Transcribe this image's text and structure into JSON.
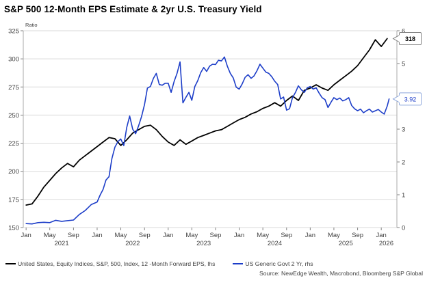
{
  "title": "S&P 500 12-Month EPS Estimate & 2yr U.S. Treasury Yield",
  "source": "Source: NewEdge Wealth, Macrobond, Bloomberg S&P Global",
  "colors": {
    "eps": "#000000",
    "yield": "#1c3dc8",
    "grid": "#d9d9d9",
    "axis": "#a9a9a9",
    "tick": "#808080",
    "text": "#404040",
    "callout_border_gray": "#7f7f7f",
    "callout_border_blue": "#8fa8dc"
  },
  "chart_data": {
    "type": "line",
    "title": "S&P 500 12-Month EPS Estimate & 2yr U.S. Treasury Yield",
    "legend_position": "bottom",
    "grid": true,
    "y_left": {
      "label": "Ratio",
      "min": 150,
      "max": 325,
      "ticks": [
        150,
        175,
        200,
        225,
        250,
        275,
        300,
        325
      ]
    },
    "y_right": {
      "label": "",
      "min": 0,
      "max": 6,
      "ticks": [
        0,
        1,
        2,
        3,
        4,
        5,
        6
      ]
    },
    "x": {
      "domain": [
        2020.96,
        2026.22
      ],
      "month_ticks": [
        {
          "t": 2021.0,
          "label": "Jan"
        },
        {
          "t": 2021.333,
          "label": "May"
        },
        {
          "t": 2021.667,
          "label": "Sep"
        },
        {
          "t": 2022.0,
          "label": "Jan"
        },
        {
          "t": 2022.333,
          "label": "May"
        },
        {
          "t": 2022.667,
          "label": "Sep"
        },
        {
          "t": 2023.0,
          "label": "Jan"
        },
        {
          "t": 2023.333,
          "label": "May"
        },
        {
          "t": 2023.667,
          "label": "Sep"
        },
        {
          "t": 2024.0,
          "label": "Jan"
        },
        {
          "t": 2024.333,
          "label": "May"
        },
        {
          "t": 2024.667,
          "label": "Sep"
        },
        {
          "t": 2025.0,
          "label": "Jan"
        },
        {
          "t": 2025.333,
          "label": "May"
        },
        {
          "t": 2025.667,
          "label": "Sep"
        },
        {
          "t": 2026.0,
          "label": "Jan"
        }
      ],
      "year_ticks": [
        {
          "t": 2021.5,
          "label": "2021"
        },
        {
          "t": 2022.5,
          "label": "2022"
        },
        {
          "t": 2023.5,
          "label": "2023"
        },
        {
          "t": 2024.5,
          "label": "2024"
        },
        {
          "t": 2025.5,
          "label": "2025"
        },
        {
          "t": 2026.07,
          "label": "2026"
        }
      ]
    },
    "series": [
      {
        "name": "United States, Equity Indices, S&P, 500, Index, 12 -Month Forward EPS, lhs",
        "axis": "left",
        "color": "#000000",
        "width": 1.8,
        "end_label": "318",
        "start": 2021.0,
        "step_months": 1,
        "values": [
          170,
          171,
          178,
          186,
          192,
          198,
          203,
          207,
          204,
          210,
          214,
          218,
          222,
          226,
          230,
          229,
          223,
          228,
          234,
          237,
          240,
          241,
          237,
          231,
          226,
          223,
          228,
          224,
          227,
          230,
          232,
          234,
          236,
          237,
          240,
          243,
          246,
          248,
          251,
          253,
          256,
          258,
          261,
          258,
          263,
          267,
          263,
          272,
          274,
          277,
          274,
          272,
          277,
          281,
          285,
          289,
          294,
          301,
          308,
          317,
          311,
          318
        ]
      },
      {
        "name": "US Generic Govt 2 Yr, rhs",
        "axis": "right",
        "color": "#1c3dc8",
        "width": 1.6,
        "end_label": "3.92",
        "points": [
          [
            2021.0,
            0.12
          ],
          [
            2021.083,
            0.11
          ],
          [
            2021.167,
            0.15
          ],
          [
            2021.25,
            0.16
          ],
          [
            2021.333,
            0.15
          ],
          [
            2021.417,
            0.22
          ],
          [
            2021.5,
            0.19
          ],
          [
            2021.583,
            0.21
          ],
          [
            2021.667,
            0.23
          ],
          [
            2021.75,
            0.4
          ],
          [
            2021.833,
            0.52
          ],
          [
            2021.917,
            0.7
          ],
          [
            2022.0,
            0.78
          ],
          [
            2022.042,
            0.99
          ],
          [
            2022.083,
            1.16
          ],
          [
            2022.125,
            1.45
          ],
          [
            2022.167,
            1.55
          ],
          [
            2022.208,
            2.1
          ],
          [
            2022.25,
            2.45
          ],
          [
            2022.292,
            2.62
          ],
          [
            2022.333,
            2.7
          ],
          [
            2022.375,
            2.5
          ],
          [
            2022.417,
            3.05
          ],
          [
            2022.458,
            3.4
          ],
          [
            2022.5,
            3.0
          ],
          [
            2022.542,
            2.86
          ],
          [
            2022.583,
            3.1
          ],
          [
            2022.625,
            3.38
          ],
          [
            2022.667,
            3.75
          ],
          [
            2022.708,
            4.25
          ],
          [
            2022.75,
            4.3
          ],
          [
            2022.792,
            4.55
          ],
          [
            2022.833,
            4.7
          ],
          [
            2022.875,
            4.36
          ],
          [
            2022.917,
            4.34
          ],
          [
            2022.958,
            4.4
          ],
          [
            2023.0,
            4.4
          ],
          [
            2023.042,
            4.12
          ],
          [
            2023.083,
            4.45
          ],
          [
            2023.125,
            4.7
          ],
          [
            2023.167,
            5.05
          ],
          [
            2023.208,
            3.8
          ],
          [
            2023.25,
            3.97
          ],
          [
            2023.292,
            4.12
          ],
          [
            2023.333,
            3.88
          ],
          [
            2023.375,
            4.3
          ],
          [
            2023.417,
            4.48
          ],
          [
            2023.458,
            4.72
          ],
          [
            2023.5,
            4.88
          ],
          [
            2023.542,
            4.76
          ],
          [
            2023.583,
            4.92
          ],
          [
            2023.625,
            4.98
          ],
          [
            2023.667,
            4.97
          ],
          [
            2023.708,
            5.1
          ],
          [
            2023.75,
            5.08
          ],
          [
            2023.792,
            5.2
          ],
          [
            2023.833,
            4.92
          ],
          [
            2023.875,
            4.7
          ],
          [
            2023.917,
            4.56
          ],
          [
            2023.958,
            4.28
          ],
          [
            2024.0,
            4.22
          ],
          [
            2024.042,
            4.38
          ],
          [
            2024.083,
            4.58
          ],
          [
            2024.125,
            4.66
          ],
          [
            2024.167,
            4.55
          ],
          [
            2024.208,
            4.62
          ],
          [
            2024.25,
            4.78
          ],
          [
            2024.292,
            4.98
          ],
          [
            2024.333,
            4.86
          ],
          [
            2024.375,
            4.74
          ],
          [
            2024.417,
            4.7
          ],
          [
            2024.458,
            4.6
          ],
          [
            2024.5,
            4.46
          ],
          [
            2024.542,
            4.36
          ],
          [
            2024.583,
            3.92
          ],
          [
            2024.625,
            3.98
          ],
          [
            2024.667,
            3.58
          ],
          [
            2024.708,
            3.62
          ],
          [
            2024.75,
            3.96
          ],
          [
            2024.792,
            4.12
          ],
          [
            2024.833,
            4.32
          ],
          [
            2024.875,
            4.2
          ],
          [
            2024.917,
            4.12
          ],
          [
            2024.958,
            4.26
          ],
          [
            2025.0,
            4.3
          ],
          [
            2025.042,
            4.22
          ],
          [
            2025.083,
            4.26
          ],
          [
            2025.125,
            4.1
          ],
          [
            2025.167,
            3.96
          ],
          [
            2025.208,
            3.9
          ],
          [
            2025.25,
            3.66
          ],
          [
            2025.292,
            3.82
          ],
          [
            2025.333,
            3.96
          ],
          [
            2025.375,
            3.9
          ],
          [
            2025.417,
            3.95
          ],
          [
            2025.458,
            3.86
          ],
          [
            2025.5,
            3.9
          ],
          [
            2025.542,
            3.96
          ],
          [
            2025.583,
            3.72
          ],
          [
            2025.625,
            3.62
          ],
          [
            2025.667,
            3.56
          ],
          [
            2025.708,
            3.61
          ],
          [
            2025.75,
            3.5
          ],
          [
            2025.792,
            3.56
          ],
          [
            2025.833,
            3.61
          ],
          [
            2025.875,
            3.52
          ],
          [
            2025.917,
            3.56
          ],
          [
            2025.958,
            3.6
          ],
          [
            2026.0,
            3.52
          ],
          [
            2026.042,
            3.46
          ],
          [
            2026.083,
            3.7
          ],
          [
            2026.11,
            3.92
          ]
        ]
      }
    ],
    "source": "Source: NewEdge Wealth, Macrobond, Bloomberg S&P Global"
  }
}
